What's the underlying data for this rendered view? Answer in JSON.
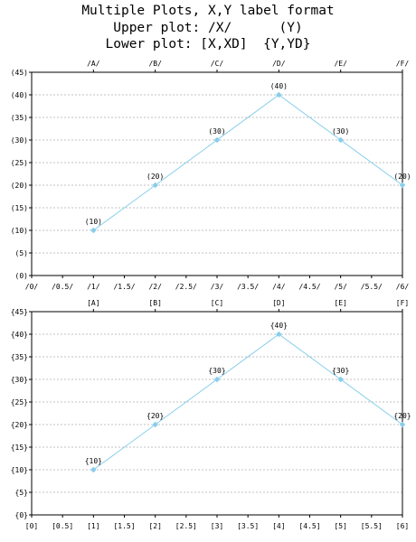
{
  "title_lines": [
    "Multiple Plots, X,Y label format",
    "Upper plot: /X/      (Y)",
    "Lower plot: [X,XD]  {Y,YD}"
  ],
  "colors": {
    "series": "#87CEEB",
    "grid": "#c0c0c0",
    "axis": "#000000"
  },
  "chart_data": [
    {
      "type": "line",
      "name": "upper-plot",
      "x": [
        1,
        2,
        3,
        4,
        5,
        6
      ],
      "values": [
        10,
        20,
        30,
        40,
        30,
        20
      ],
      "top_labels": [
        "/A/",
        "/B/",
        "/C/",
        "/D/",
        "/E/",
        "/F/"
      ],
      "x_ticks": [
        "/0/",
        "/0.5/",
        "/1/",
        "/1.5/",
        "/2/",
        "/2.5/",
        "/3/",
        "/3.5/",
        "/4/",
        "/4.5/",
        "/5/",
        "/5.5/",
        "/6/"
      ],
      "y_ticks": [
        "(0)",
        "(5)",
        "(10)",
        "(15)",
        "(20)",
        "(25)",
        "(30)",
        "(35)",
        "(40)",
        "(45)"
      ],
      "data_labels": [
        "(10)",
        "(20)",
        "(30)",
        "(40)",
        "(30)",
        "(20)"
      ],
      "xlim": [
        0,
        6
      ],
      "ylim": [
        0,
        45
      ],
      "grid": "horizontal dashed"
    },
    {
      "type": "line",
      "name": "lower-plot",
      "x": [
        1,
        2,
        3,
        4,
        5,
        6
      ],
      "values": [
        10,
        20,
        30,
        40,
        30,
        20
      ],
      "top_labels": [
        "[A]",
        "[B]",
        "[C]",
        "[D]",
        "[E]",
        "[F]"
      ],
      "x_ticks": [
        "[0]",
        "[0.5]",
        "[1]",
        "[1.5]",
        "[2]",
        "[2.5]",
        "[3]",
        "[3.5]",
        "[4]",
        "[4.5]",
        "[5]",
        "[5.5]",
        "[6]"
      ],
      "y_ticks": [
        "{0}",
        "{5}",
        "{10}",
        "{15}",
        "{20}",
        "{25}",
        "{30}",
        "{35}",
        "{40}",
        "{45}"
      ],
      "data_labels": [
        "{10}",
        "{20}",
        "{30}",
        "{40}",
        "{30}",
        "{20}"
      ],
      "xlim": [
        0,
        6
      ],
      "ylim": [
        0,
        45
      ],
      "grid": "horizontal dashed"
    }
  ]
}
